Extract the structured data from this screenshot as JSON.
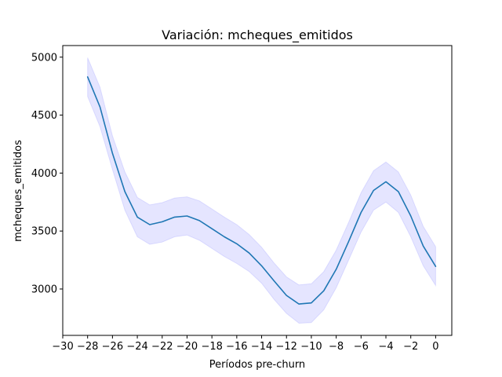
{
  "chart_data": {
    "type": "line",
    "title": "Variación: mcheques_emitidos",
    "xlabel": "Períodos pre-churn",
    "ylabel": "mcheques_emitidos",
    "xlim": [
      -30,
      1.3
    ],
    "ylim": [
      2600,
      5100
    ],
    "xticks": [
      -30,
      -28,
      -26,
      -24,
      -22,
      -20,
      -18,
      -16,
      -14,
      -12,
      -10,
      -8,
      -6,
      -4,
      -2,
      0
    ],
    "xtick_labels": [
      "−30",
      "−28",
      "−26",
      "−24",
      "−22",
      "−20",
      "−18",
      "−16",
      "−14",
      "−12",
      "−10",
      "−8",
      "−6",
      "−4",
      "−2",
      "0"
    ],
    "yticks": [
      3000,
      3500,
      4000,
      4500,
      5000
    ],
    "ytick_labels": [
      "3000",
      "3500",
      "4000",
      "4500",
      "5000"
    ],
    "grid": false,
    "series": [
      {
        "line_color": "#1f77b4",
        "band_color": "#0000ff",
        "x": [
          -28,
          -27,
          -26,
          -25,
          -24,
          -23,
          -22,
          -21,
          -20,
          -19,
          -18,
          -17,
          -16,
          -15,
          -14,
          -13,
          -12,
          -11,
          -10,
          -9,
          -8,
          -7,
          -6,
          -5,
          -4,
          -3,
          -2,
          -1,
          0
        ],
        "y": [
          4830,
          4570,
          4170,
          3840,
          3620,
          3555,
          3580,
          3620,
          3630,
          3590,
          3520,
          3450,
          3390,
          3310,
          3200,
          3070,
          2945,
          2870,
          2880,
          2985,
          3170,
          3410,
          3660,
          3850,
          3925,
          3840,
          3630,
          3370,
          3195
        ],
        "lower": [
          4660,
          4400,
          4030,
          3680,
          3450,
          3385,
          3405,
          3450,
          3465,
          3420,
          3350,
          3280,
          3220,
          3150,
          3050,
          2910,
          2790,
          2705,
          2710,
          2820,
          3010,
          3250,
          3490,
          3680,
          3750,
          3660,
          3450,
          3200,
          3030
        ],
        "upper": [
          4995,
          4740,
          4320,
          4010,
          3790,
          3725,
          3745,
          3785,
          3795,
          3760,
          3690,
          3620,
          3555,
          3470,
          3360,
          3225,
          3105,
          3035,
          3045,
          3150,
          3335,
          3575,
          3830,
          4020,
          4095,
          4010,
          3810,
          3540,
          3365
        ]
      }
    ]
  }
}
